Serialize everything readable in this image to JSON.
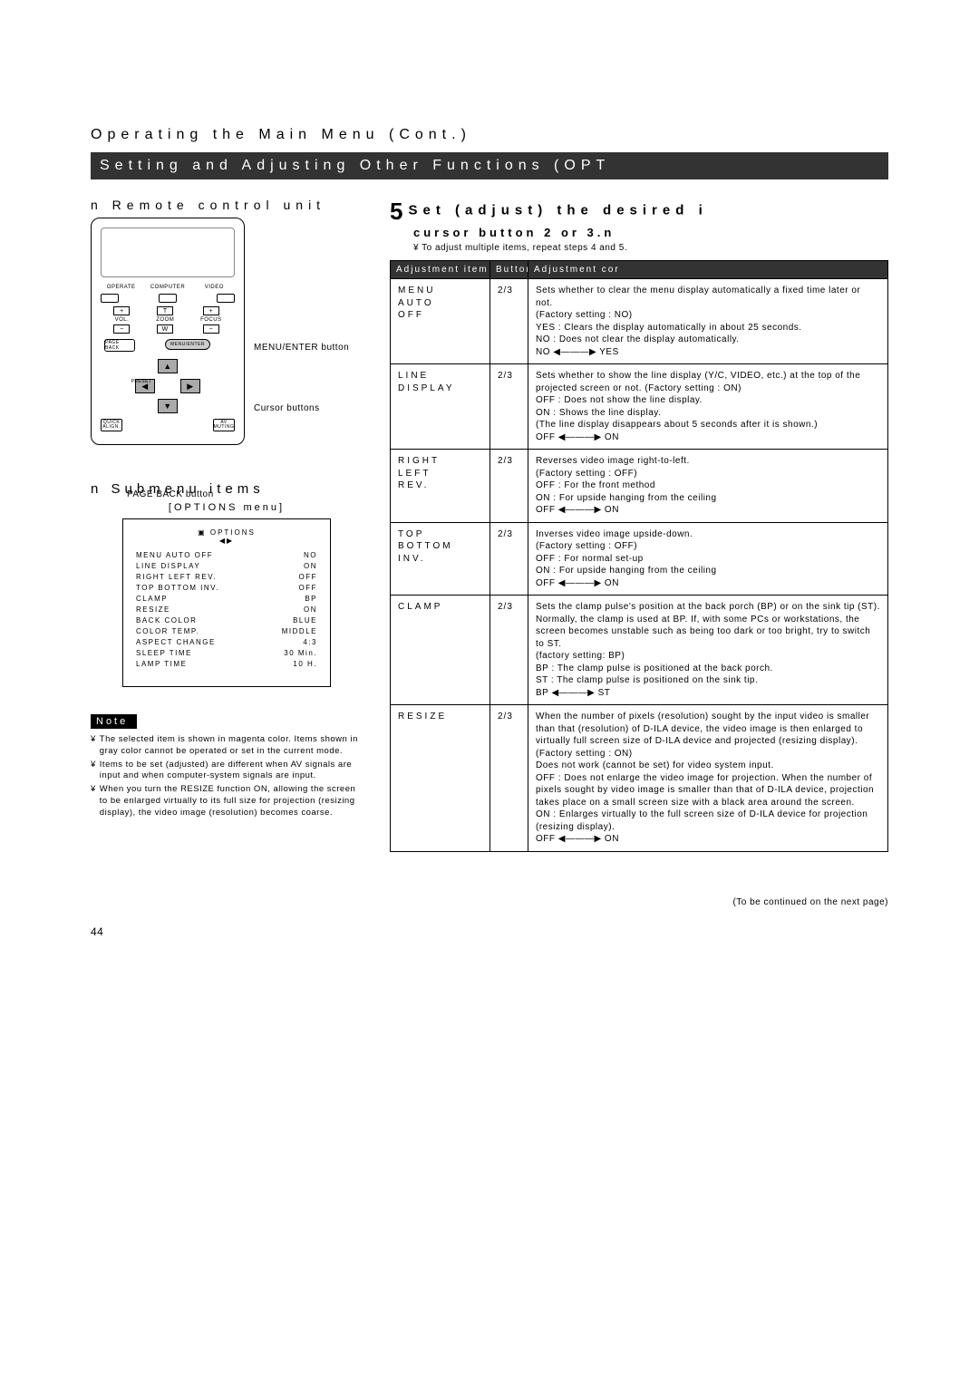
{
  "breadcrumb": "Operating the Main Menu (Cont.)",
  "titleBar": "Setting and Adjusting Other Functions (OPT",
  "leftHeading": "n Remote control unit",
  "callouts": {
    "menuEnter": "MENU/ENTER button",
    "cursor": "Cursor buttons",
    "pageBack": "PAGE BACK button"
  },
  "remote": {
    "row1": [
      "OPERATE",
      "COMPUTER",
      "VIDEO"
    ],
    "sqLabels": [
      "VOL.",
      "ZOOM",
      "FOCUS"
    ],
    "sqTop": [
      "+",
      "T",
      "+"
    ],
    "sqBot": [
      "−",
      "W",
      "−"
    ],
    "pageBack": "PAGE BACK",
    "menuEnter": "MENU/ENTER",
    "preset": "PRESET",
    "bottom": [
      "QUICK ALIGN.",
      "AV MUTING"
    ]
  },
  "step": {
    "num": "5",
    "line1": "Set (adjust) the desired i",
    "line2": "cursor button 2 or 3.n",
    "note": "¥ To adjust multiple items, repeat steps 4 and 5."
  },
  "tableHead": [
    "Adjustment item",
    "Button",
    "Adjustment cor"
  ],
  "rows": [
    {
      "item": "MENU AUTO OFF",
      "btn": "2/3",
      "content": "Sets whether to clear the menu display automatically a fixed time later or not.\n(Factory setting : NO)\nYES : Clears the display automatically in about 25 seconds.\nNO : Does not clear the display automatically.\nNO ◀———▶ YES"
    },
    {
      "item": "LINE DISPLAY",
      "btn": "2/3",
      "content": "Sets whether to show the line display (Y/C, VIDEO, etc.) at the top of the projected screen or not. (Factory setting : ON)\nOFF : Does not show the line display.\nON : Shows the line display.\n(The line display disappears about 5 seconds after it is shown.)\nOFF ◀———▶ ON"
    },
    {
      "item": "RIGHT LEFT REV.",
      "btn": "2/3",
      "content": "Reverses video image right-to-left.\n(Factory setting : OFF)\nOFF : For the front method\nON : For upside hanging from the ceiling\nOFF ◀———▶ ON"
    },
    {
      "item": "TOP BOTTOM INV.",
      "btn": "2/3",
      "content": "Inverses video image upside-down.\n(Factory setting : OFF)\nOFF : For normal set-up\nON : For upside hanging from the ceiling\nOFF ◀———▶ ON"
    },
    {
      "item": "CLAMP",
      "btn": "2/3",
      "content": "Sets the clamp pulse's position at the back porch (BP) or on the sink tip (ST).\nNormally, the clamp is used at BP. If, with some PCs or workstations, the screen becomes unstable such as being too dark or too bright, try to switch to ST.\n(factory setting: BP)\nBP : The clamp pulse is positioned at the back porch.\nST : The clamp pulse is positioned on the sink tip.\nBP ◀———▶ ST"
    },
    {
      "item": "RESIZE",
      "btn": "2/3",
      "content": "When the number of pixels (resolution) sought by the input video is smaller than that (resolution) of D-ILA device, the video image is then enlarged to virtually full screen size of D-ILA device and projected (resizing display). (Factory setting : ON)\nDoes not work (cannot be set) for video system input.\nOFF : Does not enlarge the video image for projection. When the number of pixels sought by video image is smaller than that of D-ILA device, projection takes place on a small screen size with a black area around the screen.\nON : Enlarges virtually to the full screen size of D-ILA device for projection (resizing display).\nOFF ◀———▶ ON"
    }
  ],
  "submenu": {
    "heading": "n Submenu items",
    "sub": "[OPTIONS menu]",
    "hdr": "OPTIONS",
    "items": [
      [
        "MENU AUTO OFF",
        "NO"
      ],
      [
        "LINE DISPLAY",
        "ON"
      ],
      [
        "RIGHT LEFT REV.",
        "OFF"
      ],
      [
        "TOP BOTTOM INV.",
        "OFF"
      ],
      [
        "CLAMP",
        "BP"
      ],
      [
        "RESIZE",
        "ON"
      ],
      [
        "BACK COLOR",
        "BLUE"
      ],
      [
        "COLOR TEMP.",
        "MIDDLE"
      ],
      [
        "ASPECT CHANGE",
        "4:3"
      ],
      [
        "SLEEP TIME",
        "30  Min."
      ],
      [
        "LAMP TIME",
        "10  H."
      ]
    ]
  },
  "noteTag": "Note",
  "notes": [
    "The selected item is shown in magenta color. Items shown in gray color cannot be operated or set in the current mode.",
    "Items to be set (adjusted) are different when AV signals are input and when computer-system signals are input.",
    "When you turn the RESIZE function ON, allowing the screen to be enlarged virtually to its full size for projection (resizing display), the video image (resolution) becomes coarse."
  ],
  "continued": "(To be continued on the next page)",
  "pageNum": "44"
}
